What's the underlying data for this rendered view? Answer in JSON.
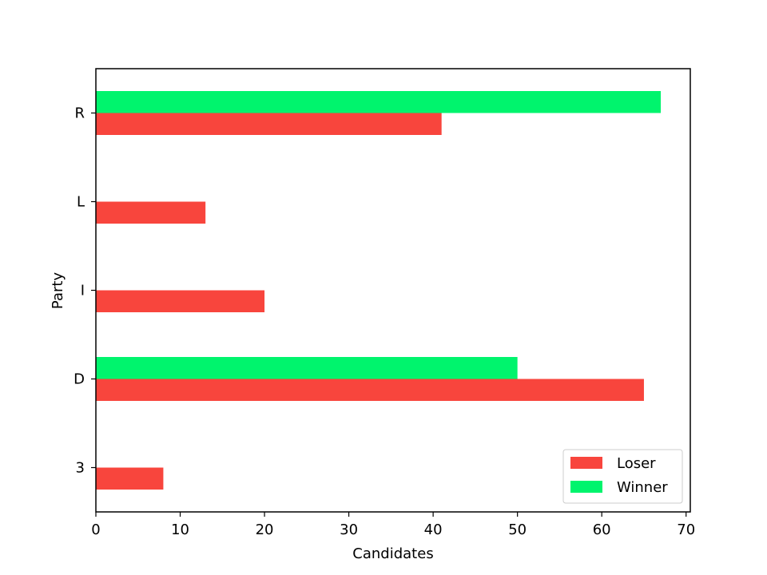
{
  "chart_data": {
    "type": "bar",
    "orientation": "horizontal",
    "categories": [
      "3",
      "D",
      "I",
      "L",
      "R"
    ],
    "series": [
      {
        "name": "Loser",
        "color": "#f8453d",
        "values": [
          8,
          65,
          20,
          13,
          41
        ]
      },
      {
        "name": "Winner",
        "color": "#00f46d",
        "values": [
          0,
          50,
          0,
          0,
          67
        ]
      }
    ],
    "xlabel": "Candidates",
    "ylabel": "Party",
    "xlim": [
      0,
      70.5
    ],
    "xticks": [
      0,
      10,
      20,
      30,
      40,
      50,
      60,
      70
    ],
    "grid": false,
    "legend_position": "lower-right"
  }
}
